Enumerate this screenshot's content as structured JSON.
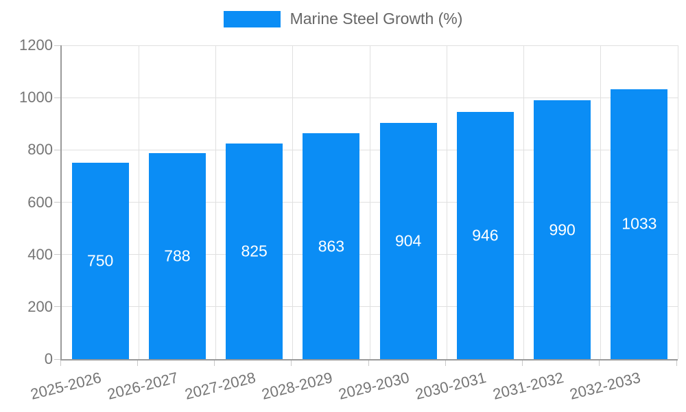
{
  "chart_data": {
    "type": "bar",
    "legend": "Marine Steel Growth (%)",
    "legend_position": "top",
    "categories": [
      "2025-2026",
      "2026-2027",
      "2027-2028",
      "2028-2029",
      "2029-2030",
      "2030-2031",
      "2031-2032",
      "2032-2033"
    ],
    "values": [
      750,
      788,
      825,
      863,
      904,
      946,
      990,
      1033
    ],
    "ylim": [
      0,
      1200
    ],
    "yticks": [
      0,
      200,
      400,
      600,
      800,
      1000,
      1200
    ],
    "grid": true,
    "bar_label_position": "center-inside"
  },
  "colors": {
    "bar": "#0b8df5",
    "bar_label": "#ffffff",
    "axis_line": "#9a9a9a",
    "gridline": "#e0e0e0",
    "tick_mark": "#c8c8c8",
    "tick_text": "#757575",
    "legend_text": "#666666",
    "background": "#ffffff"
  }
}
